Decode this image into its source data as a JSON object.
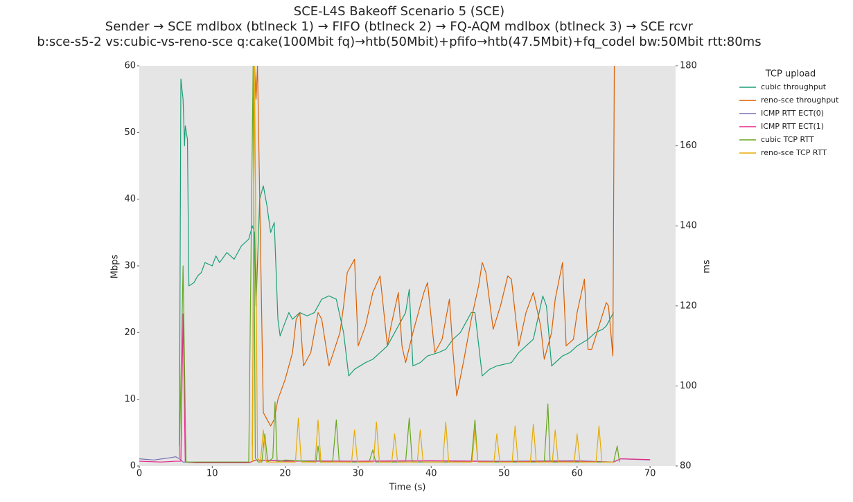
{
  "chart_data": {
    "type": "line",
    "title": "SCE-L4S Bakeoff Scenario 5 (SCE)",
    "subtitle": [
      "Sender → SCE mdlbox (btlneck 1) → FIFO (btlneck 2) → FQ-AQM mdlbox (btlneck 3) → SCE rcvr",
      "b:sce-s5-2 vs:cubic-vs-reno-sce q:cake(100Mbit fq)→htb(50Mbit)+pfifo→htb(47.5Mbit)+fq_codel bw:50Mbit rtt:80ms"
    ],
    "x_label": "Time (s)",
    "y_label": "Mbps",
    "y2_label": "ms",
    "xlim": [
      0,
      73.5
    ],
    "xticks": [
      0,
      10,
      20,
      30,
      40,
      50,
      60,
      70
    ],
    "ylim": [
      0,
      60
    ],
    "yticks": [
      0,
      10,
      20,
      30,
      40,
      50,
      60
    ],
    "y2lim": [
      80,
      180
    ],
    "y2ticks": [
      80,
      100,
      120,
      140,
      160,
      180
    ],
    "legend_title": "TCP upload",
    "legend": "outside-right",
    "grid": false,
    "series": [
      {
        "name": "cubic throughput",
        "color": "#1b9e77",
        "x": [
          5.5,
          5.7,
          6.0,
          6.2,
          6.3,
          6.6,
          6.8,
          7.5,
          8,
          8.5,
          9,
          10,
          10.5,
          11,
          12,
          13,
          14,
          15,
          15.5,
          15.8,
          16,
          16.5,
          17,
          17.5,
          18,
          18.5,
          19,
          19.3,
          19.8,
          20.5,
          21,
          22,
          23,
          24,
          25,
          26,
          27,
          28,
          28.7,
          29.5,
          31,
          32,
          33,
          34,
          35,
          36.5,
          37,
          37.5,
          38.5,
          39.5,
          41,
          42,
          43,
          44,
          45.5,
          46,
          47,
          48,
          49,
          51,
          52,
          53,
          54,
          55.3,
          55.8,
          56.5,
          57.5,
          58,
          59,
          60,
          61.5,
          62.5,
          63.5,
          64,
          65
        ],
        "values": [
          3,
          58,
          55,
          48,
          51,
          49,
          27,
          27.5,
          28.5,
          29,
          30.5,
          30,
          31.5,
          30.5,
          32,
          31,
          33,
          34,
          36,
          35,
          24,
          40,
          42,
          39,
          35,
          36.5,
          22,
          19.5,
          21,
          23,
          22,
          23,
          22.5,
          23,
          25,
          25.5,
          25,
          20,
          13.5,
          14.5,
          15.5,
          16,
          17,
          18,
          20,
          23,
          26.5,
          15,
          15.5,
          16.5,
          17,
          17.5,
          19,
          20,
          23,
          23,
          13.5,
          14.5,
          15,
          15.5,
          17,
          18,
          19,
          25.5,
          24,
          15,
          16,
          16.5,
          17,
          18,
          19,
          20,
          20.5,
          21,
          23
        ]
      },
      {
        "name": "reno-sce throughput",
        "color": "#d95f02",
        "x": [
          15.5,
          15.8,
          16,
          16.2,
          17,
          17.5,
          18,
          18.5,
          19,
          20,
          21,
          21.5,
          22,
          22.5,
          23.5,
          24,
          24.5,
          25,
          26,
          27.5,
          28,
          28.5,
          29.5,
          30,
          31,
          32,
          33,
          34,
          34.5,
          35.5,
          36,
          36.5,
          37.5,
          39,
          39.5,
          40.5,
          41.5,
          42,
          42.5,
          43,
          43.5,
          44.5,
          45.5,
          46.5,
          47,
          47.5,
          48.5,
          49.5,
          50.5,
          51,
          52,
          53,
          54,
          55,
          55.5,
          56.5,
          57,
          58,
          58.5,
          59.5,
          60,
          61,
          61.5,
          62,
          63,
          64,
          64.3,
          64.9,
          65.1
        ],
        "values": [
          3,
          60,
          55,
          60,
          8,
          7,
          6,
          7,
          10,
          13,
          17,
          22,
          23,
          15,
          17,
          20,
          23,
          22,
          15,
          20,
          24,
          29,
          31,
          18,
          21,
          26,
          28.5,
          18,
          21,
          26,
          18,
          15.5,
          20,
          26,
          27.5,
          17,
          19,
          22,
          25,
          17,
          10.5,
          16,
          22,
          27,
          30.5,
          29,
          20.5,
          24,
          28.5,
          28,
          18,
          23,
          26,
          21,
          16,
          20,
          25,
          30.5,
          18,
          19,
          23,
          28,
          17.5,
          17.5,
          21,
          24.5,
          24,
          16.5,
          60
        ]
      },
      {
        "name": "ICMP RTT ECT(0)",
        "color": "#7570b3",
        "axis": "y2",
        "x": [
          0,
          2,
          4,
          5,
          5.5,
          6,
          8,
          15,
          16,
          20,
          30,
          40,
          50,
          60,
          65,
          66,
          70
        ],
        "values": [
          81.8,
          81.5,
          82,
          82.3,
          81.8,
          81,
          80.8,
          80.8,
          81.5,
          81.3,
          81.2,
          81.3,
          81.2,
          81.3,
          81,
          81.8,
          81.5
        ]
      },
      {
        "name": "ICMP RTT ECT(1)",
        "color": "#e7298a",
        "axis": "y2",
        "x": [
          0,
          3,
          5,
          5.7,
          6,
          6.3,
          8,
          15,
          16,
          20,
          30,
          40,
          50,
          60,
          65,
          66,
          70
        ],
        "values": [
          81.2,
          81,
          81.2,
          81.2,
          118,
          81,
          80.8,
          80.8,
          81.5,
          81.2,
          81.2,
          81.3,
          81.1,
          81.2,
          81,
          81.8,
          81.6
        ]
      },
      {
        "name": "cubic TCP RTT",
        "color": "#66a61e",
        "axis": "y2",
        "x": [
          5.5,
          6,
          6.4,
          10,
          15,
          15.6,
          15.9,
          16.3,
          16.8,
          17.2,
          17.6,
          18.3,
          18.6,
          18.9,
          20,
          24.2,
          24.5,
          24.8,
          26.5,
          27,
          27.4,
          31.5,
          32,
          32.4,
          36.5,
          37,
          37.4,
          45.5,
          46,
          46.4,
          55.5,
          56,
          56.3,
          65,
          65.5,
          65.8
        ],
        "values": [
          82,
          130,
          81,
          81,
          81,
          180,
          82,
          81,
          81,
          88,
          81,
          82,
          96,
          81,
          81.5,
          81,
          85,
          81,
          81,
          91.5,
          81,
          81,
          84,
          81,
          81,
          92,
          81,
          81,
          91.5,
          81,
          81,
          95.5,
          81,
          81,
          85,
          81
        ]
      },
      {
        "name": "reno-sce TCP RTT",
        "color": "#e6ab02",
        "axis": "y2",
        "x": [
          15.5,
          15.8,
          16.2,
          16.6,
          17,
          17.4,
          18,
          21.4,
          21.8,
          22.2,
          24.1,
          24.5,
          24.9,
          29.1,
          29.5,
          29.9,
          32.1,
          32.5,
          32.9,
          34.6,
          35,
          35.4,
          38.1,
          38.5,
          38.9,
          41.6,
          42,
          42.4,
          45.6,
          46,
          46.4,
          48.6,
          49,
          49.4,
          51.1,
          51.5,
          51.9,
          53.6,
          54,
          54.4,
          56.6,
          57,
          57.4,
          59.6,
          60,
          60.4,
          62.6,
          63,
          63.4,
          65
        ],
        "values": [
          81,
          180,
          82,
          81,
          89,
          81,
          81,
          81,
          92,
          81,
          81,
          91.5,
          81,
          81,
          89,
          81,
          81,
          91,
          81,
          81,
          88,
          81,
          81,
          89,
          81,
          81,
          91,
          81,
          81,
          89,
          81,
          81,
          88,
          81,
          81,
          90,
          81,
          81,
          90.5,
          81,
          81,
          89,
          81,
          81,
          88,
          81,
          81,
          90,
          81,
          81
        ]
      }
    ]
  }
}
